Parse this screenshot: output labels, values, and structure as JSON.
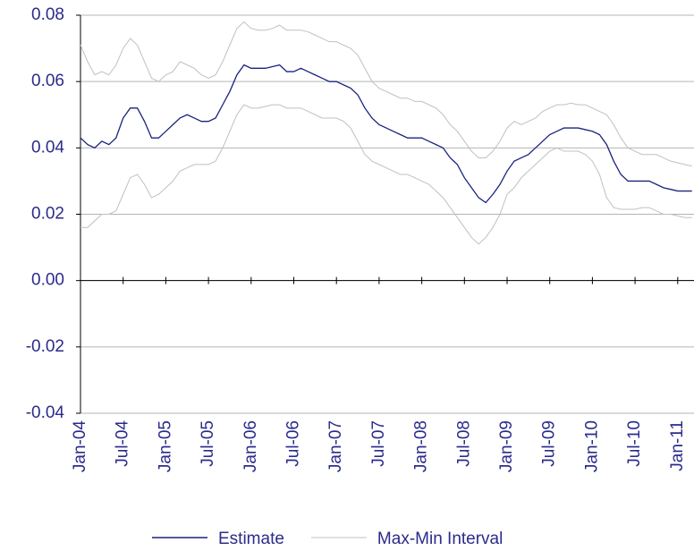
{
  "chart_data": {
    "type": "line",
    "categories": [
      "Jan-04",
      null,
      null,
      null,
      null,
      null,
      "Jul-04",
      null,
      null,
      null,
      null,
      null,
      "Jan-05",
      null,
      null,
      null,
      null,
      null,
      "Jul-05",
      null,
      null,
      null,
      null,
      null,
      "Jan-06",
      null,
      null,
      null,
      null,
      null,
      "Jul-06",
      null,
      null,
      null,
      null,
      null,
      "Jan-07",
      null,
      null,
      null,
      null,
      null,
      "Jul-07",
      null,
      null,
      null,
      null,
      null,
      "Jan-08",
      null,
      null,
      null,
      null,
      null,
      "Jul-08",
      null,
      null,
      null,
      null,
      null,
      "Jan-09",
      null,
      null,
      null,
      null,
      null,
      "Jul-09",
      null,
      null,
      null,
      null,
      null,
      "Jan-10",
      null,
      null,
      null,
      null,
      null,
      "Jul-10",
      null,
      null,
      null,
      null,
      null,
      "Jan-11",
      null,
      null
    ],
    "series": [
      {
        "name": "Estimate",
        "color": "#1a237e",
        "values": [
          0.043,
          0.041,
          0.04,
          0.042,
          0.041,
          0.043,
          0.049,
          0.052,
          0.052,
          0.048,
          0.043,
          0.043,
          0.045,
          0.047,
          0.049,
          0.05,
          0.049,
          0.048,
          0.048,
          0.049,
          0.053,
          0.057,
          0.062,
          0.065,
          0.064,
          0.064,
          0.064,
          0.0645,
          0.065,
          0.063,
          0.063,
          0.064,
          0.063,
          0.062,
          0.061,
          0.06,
          0.06,
          0.059,
          0.058,
          0.056,
          0.052,
          0.049,
          0.047,
          0.046,
          0.045,
          0.044,
          0.043,
          0.043,
          0.043,
          0.042,
          0.041,
          0.04,
          0.037,
          0.035,
          0.031,
          0.028,
          0.025,
          0.0235,
          0.026,
          0.029,
          0.033,
          0.036,
          0.037,
          0.038,
          0.04,
          0.042,
          0.044,
          0.045,
          0.046,
          0.046,
          0.046,
          0.0455,
          0.045,
          0.044,
          0.041,
          0.036,
          0.032,
          0.03,
          0.03,
          0.03,
          0.03,
          0.029,
          0.028,
          0.0275,
          0.027,
          0.027,
          0.027
        ]
      },
      {
        "name": "Max-Min Interval",
        "color": "#c0c0c0",
        "values": [
          0.071,
          0.066,
          0.062,
          0.063,
          0.062,
          0.065,
          0.07,
          0.073,
          0.071,
          0.066,
          0.061,
          0.06,
          0.062,
          0.063,
          0.066,
          0.065,
          0.064,
          0.062,
          0.061,
          0.062,
          0.066,
          0.071,
          0.076,
          0.078,
          0.076,
          0.0755,
          0.0755,
          0.076,
          0.077,
          0.0755,
          0.0755,
          0.0755,
          0.075,
          0.074,
          0.073,
          0.072,
          0.072,
          0.071,
          0.07,
          0.068,
          0.064,
          0.06,
          0.058,
          0.057,
          0.056,
          0.055,
          0.055,
          0.054,
          0.054,
          0.053,
          0.052,
          0.05,
          0.047,
          0.045,
          0.042,
          0.039,
          0.037,
          0.037,
          0.039,
          0.042,
          0.046,
          0.048,
          0.047,
          0.048,
          0.049,
          0.051,
          0.052,
          0.053,
          0.053,
          0.0535,
          0.053,
          0.053,
          0.052,
          0.051,
          0.05,
          0.047,
          0.043,
          0.04,
          0.039,
          0.038,
          0.038,
          0.038,
          0.037,
          0.036,
          0.0355,
          0.035,
          0.0345
        ],
        "min_values": [
          0.016,
          0.016,
          0.018,
          0.02,
          0.02,
          0.021,
          0.026,
          0.031,
          0.032,
          0.029,
          0.025,
          0.026,
          0.028,
          0.03,
          0.033,
          0.034,
          0.035,
          0.035,
          0.035,
          0.036,
          0.04,
          0.045,
          0.05,
          0.053,
          0.052,
          0.052,
          0.0525,
          0.053,
          0.053,
          0.052,
          0.052,
          0.052,
          0.051,
          0.05,
          0.049,
          0.049,
          0.049,
          0.048,
          0.046,
          0.042,
          0.038,
          0.036,
          0.035,
          0.034,
          0.033,
          0.032,
          0.032,
          0.031,
          0.03,
          0.029,
          0.027,
          0.025,
          0.022,
          0.019,
          0.016,
          0.013,
          0.011,
          0.013,
          0.016,
          0.02,
          0.026,
          0.028,
          0.031,
          0.033,
          0.035,
          0.037,
          0.039,
          0.04,
          0.039,
          0.039,
          0.039,
          0.038,
          0.036,
          0.032,
          0.025,
          0.022,
          0.0215,
          0.0215,
          0.0215,
          0.022,
          0.022,
          0.021,
          0.02,
          0.02,
          0.0195,
          0.019,
          0.019
        ]
      }
    ],
    "ylim": [
      -0.04,
      0.08
    ],
    "yticks": [
      {
        "value": -0.04,
        "label": "-0.04"
      },
      {
        "value": -0.02,
        "label": "-0.02"
      },
      {
        "value": 0,
        "label": "0.00"
      },
      {
        "value": 0.02,
        "label": "0.02"
      },
      {
        "value": 0.04,
        "label": "0.04"
      },
      {
        "value": 0.06,
        "label": "0.06"
      },
      {
        "value": 0.08,
        "label": "0.08"
      }
    ],
    "grid": true,
    "legend": "bottom"
  }
}
